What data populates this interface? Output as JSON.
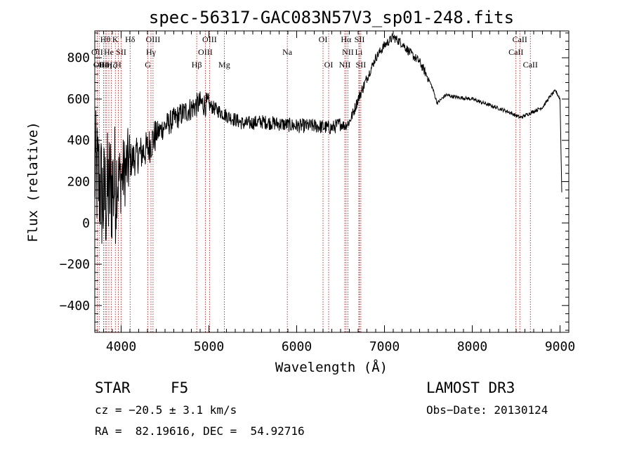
{
  "chart_data": {
    "type": "line",
    "title": "spec-56317-GAC083N57V3_sp01-248.fits",
    "xlabel": "Wavelength (Å)",
    "ylabel": "Flux (relative)",
    "xlim": [
      3700,
      9100
    ],
    "ylim": [
      -530,
      930
    ],
    "xticks": [
      4000,
      5000,
      6000,
      7000,
      8000,
      9000
    ],
    "xtick_labels": [
      "4000",
      "5000",
      "6000",
      "7000",
      "8000",
      "9000"
    ],
    "yticks": [
      -400,
      -200,
      0,
      200,
      400,
      600,
      800
    ],
    "ytick_labels": [
      "−400",
      "−200",
      "0",
      "200",
      "400",
      "600",
      "800"
    ],
    "spectrum_anchors": {
      "x": [
        3700,
        3750,
        3800,
        3850,
        3900,
        3950,
        4000,
        4050,
        4100,
        4200,
        4300,
        4400,
        4500,
        4700,
        4900,
        5000,
        5200,
        5400,
        5600,
        5800,
        6000,
        6200,
        6400,
        6500,
        6550,
        6600,
        6650,
        6700,
        6800,
        6900,
        7000,
        7100,
        7200,
        7300,
        7400,
        7500,
        7550,
        7600,
        7650,
        7700,
        7800,
        8000,
        8200,
        8400,
        8500,
        8550,
        8600,
        8700,
        8800,
        8900,
        8950,
        9000,
        9020
      ],
      "y": [
        250,
        200,
        100,
        150,
        180,
        200,
        220,
        260,
        300,
        330,
        360,
        430,
        470,
        530,
        580,
        570,
        520,
        480,
        490,
        480,
        470,
        470,
        460,
        480,
        470,
        490,
        540,
        600,
        700,
        800,
        860,
        900,
        870,
        820,
        780,
        700,
        650,
        580,
        600,
        620,
        610,
        600,
        570,
        540,
        520,
        510,
        520,
        540,
        560,
        620,
        640,
        600,
        150
      ]
    },
    "lines": [
      {
        "x": 3727,
        "label": "OII",
        "row": 2
      },
      {
        "x": 3750,
        "label": "OII",
        "row": 3
      },
      {
        "x": 3799,
        "label": "Hε",
        "row": 3
      },
      {
        "x": 3820,
        "label": "Hθ",
        "row": 1
      },
      {
        "x": 3835,
        "label": "Hη",
        "row": 3
      },
      {
        "x": 3860,
        "label": "He",
        "row": 2
      },
      {
        "x": 3889,
        "label": "Hζ",
        "row": 3
      },
      {
        "x": 3934,
        "label": "K",
        "row": 1
      },
      {
        "x": 3968,
        "label": "H",
        "row": 3
      },
      {
        "x": 4000,
        "label": "SII",
        "row": 2
      },
      {
        "x": 4102,
        "label": "Hδ",
        "row": 1
      },
      {
        "x": 4305,
        "label": "G",
        "row": 3
      },
      {
        "x": 4340,
        "label": "Hγ",
        "row": 2
      },
      {
        "x": 4363,
        "label": "OIII",
        "row": 1
      },
      {
        "x": 4861,
        "label": "Hβ",
        "row": 3
      },
      {
        "x": 4959,
        "label": "OIII",
        "row": 2
      },
      {
        "x": 5007,
        "label": "OIII",
        "row": 1
      },
      {
        "x": 5175,
        "label": "Mg",
        "row": 3
      },
      {
        "x": 5893,
        "label": "Na",
        "row": 2
      },
      {
        "x": 6300,
        "label": "OI",
        "row": 1
      },
      {
        "x": 6364,
        "label": "OI",
        "row": 3
      },
      {
        "x": 6548,
        "label": "NII",
        "row": 3
      },
      {
        "x": 6563,
        "label": "Hα",
        "row": 1
      },
      {
        "x": 6583,
        "label": "NII",
        "row": 2
      },
      {
        "x": 6708,
        "label": "Li",
        "row": 2
      },
      {
        "x": 6716,
        "label": "SII",
        "row": 1
      },
      {
        "x": 6731,
        "label": "SII",
        "row": 3
      },
      {
        "x": 8498,
        "label": "CaII",
        "row": 2
      },
      {
        "x": 8542,
        "label": "CaII",
        "row": 1
      },
      {
        "x": 8662,
        "label": "CaII",
        "row": 3
      }
    ]
  },
  "info": {
    "object_class": "STAR",
    "subclass": "F5",
    "survey": "LAMOST DR3",
    "redshift_line": "cz = −20.5 ± 3.1 km/s",
    "obs_date": "Obs−Date: 20130124",
    "coords": "RA =  82.19616, DEC =  54.92716"
  },
  "colors": {
    "spectrum": "#000000",
    "line_marker": "#c00000",
    "axes": "#000000"
  }
}
